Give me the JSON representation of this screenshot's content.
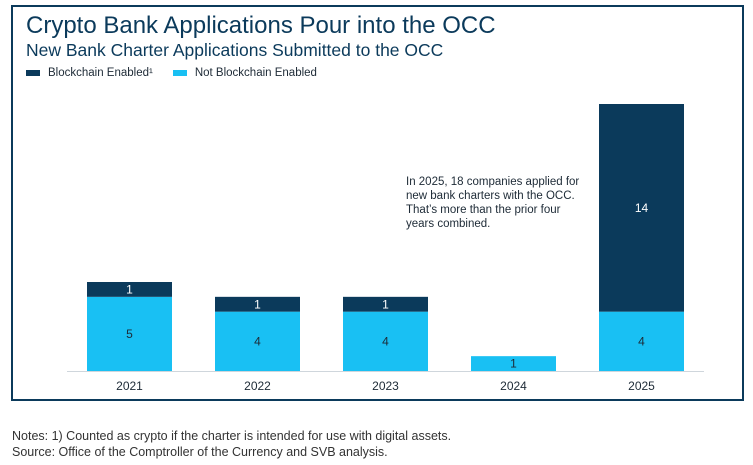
{
  "chart_data": {
    "type": "bar",
    "stacked": true,
    "title": "Crypto Bank Applications Pour into the OCC",
    "subtitle": "New Bank Charter Applications Submitted to the OCC",
    "categories": [
      "2021",
      "2022",
      "2023",
      "2024",
      "2025"
    ],
    "series": [
      {
        "name": "Not Blockchain Enabled",
        "color": "#19c0f3",
        "values": [
          5,
          4,
          4,
          1,
          4
        ]
      },
      {
        "name": "Blockchain Enabled¹",
        "color": "#0b3a5b",
        "values": [
          1,
          1,
          1,
          0,
          14
        ]
      }
    ],
    "ylim": [
      0,
      18
    ],
    "legend_position": "top-left",
    "annotation": "In 2025, 18 companies applied for new bank charters with the OCC. That’s more than the prior four years combined."
  },
  "notes": [
    "Notes: 1) Counted as crypto if the charter is intended for use with digital assets.",
    "Source: Office of the Comptroller of the Currency and SVB analysis."
  ]
}
